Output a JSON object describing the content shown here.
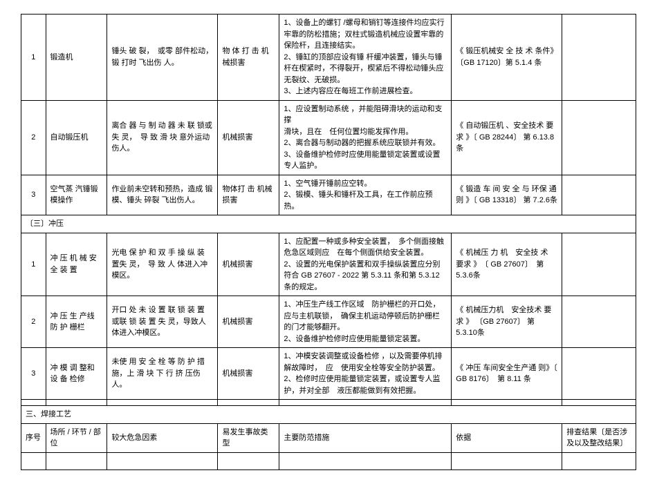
{
  "rows": [
    {
      "seq": "1",
      "place": "锻造机",
      "risk": "锤头 破 裂，　或零 部件松动，　锻 打时 飞出伤 人。",
      "type": "物 体 打 击  机械损害",
      "measure": "1、设备上的螺钉 /螺母和销钉等连接件均应实行牢靠的防松措施；双柱式锻造机械应设置牢靠的保险杆，且连接结实。\n2、锤缸的顶部应设有锤  杆缓冲装置，锤头与锤杆在楔紧时，不得裂开，楔紧后不得松动锤头应无裂纹、无破损。\n3、上述内容应在每班工作前进展检查。",
      "basis": "《 锻压机械安 全  技 术  条件》〔GB 17120〕第 5.1.4 条"
    },
    {
      "seq": "2",
      "place": "自动锻压机",
      "risk": "离合 器 与 制 动 器 未 联 锁或\n失 灵，　导 致 滑 块 意外运动伤人。",
      "type": "机械损害",
      "measure": "1、应设置制动系统 ，并能阻碍滑块的运动和支撑\n滑块，且在　任何位置均能发挥作用。\n2、离合器与制动器的把握系统应联锁并有效。\n3、设备维护检修时应使用能量锁定装置或设置专人监护。",
      "basis": "《 自动锻压机 、安全技术  要\n求 》〔 GB 28244〕 第 6.13.8条"
    },
    {
      "seq": "3",
      "place": "空气蒸 汽锤锻模操作",
      "risk": "作业前未空转和预热，造成 锻模、锤头 碎裂 飞出伤人。",
      "type": "物体打 击 机械损害",
      "measure": "1、空气锤开锤前应空转。\n2、锻模、锤头和锤杆及工具，在工作前应预热。",
      "basis": "《 锻造 车 间 安 全 与 环保 通则 》〔 GB 13318〕 第 7.2.6条"
    }
  ],
  "section2": "〔三〕冲压",
  "rows2": [
    {
      "seq": "1",
      "place": "冲 压 机 械 安 全  装 置",
      "risk": "光电 保 护 和 双 手 操 纵 装 置失 灵，　导 致 人 体进入冲模区。",
      "type": "机械损害",
      "measure": "1、应配置一种或多种安全装置，　多个侧面接触危急区域则应　在每个侧面供给安全装置。\n2、设置的光电保护装置和双手操纵装置应分别符合 GB 27607 - 2022 第  5.3.11 条和第 5.3.12 条的规定。",
      "basis": " 《 机械压 力 机　安全技 术  要求 》　〔 GB 27607〕　第 5.3.6条"
    },
    {
      "seq": "2",
      "place": "冲 压 生 产线  防  护 栅栏",
      "risk": "开口 处 未 设 置 联 锁 装 置 或联 锁 装 置 失 灵，导致人体进入冲模区。",
      "type": "机械损害",
      "measure": "1、冲压生产线工作区域　防护栅栏的开口处，　应与主机联锁，　确保主机运动停顿后防护栅栏的门才能够翻开。\n2、设备维护检修时应使用能量锁定装置。",
      "basis": "《 机械压力机　安全技术  要求 》 〔GB 27607〕  第 5.3.10条"
    },
    {
      "seq": "3",
      "place": "冲 模 调  整和  设  备 检修",
      "risk": "未使 用 安 全 栓 等 防 护  措施，上 滑 块 下 行 挤  压伤人。",
      "type": "机械损害",
      "measure": "1、冲模安装调整或设备检修 ，以及需要停机排解故障时，　应　使用安全栓等安全防护装置。\n2、检修时应使用能量锁定装置，或设置专人监护，并对全部　液压都能做到有效把握。",
      "basis": "《 冲压 车间安全生产通  则》〔 GB 8176〕　第  8.11 条"
    }
  ],
  "section3": "三、焊接工艺",
  "headers": {
    "seq": "序号",
    "place": "场所 / 环节 / 部位",
    "risk": "较大危急因素",
    "type": "易发生事故类型",
    "measure": "主要防范措施",
    "basis": "依据",
    "result": "排查结果〔是否涉及以及整改结果〕"
  }
}
